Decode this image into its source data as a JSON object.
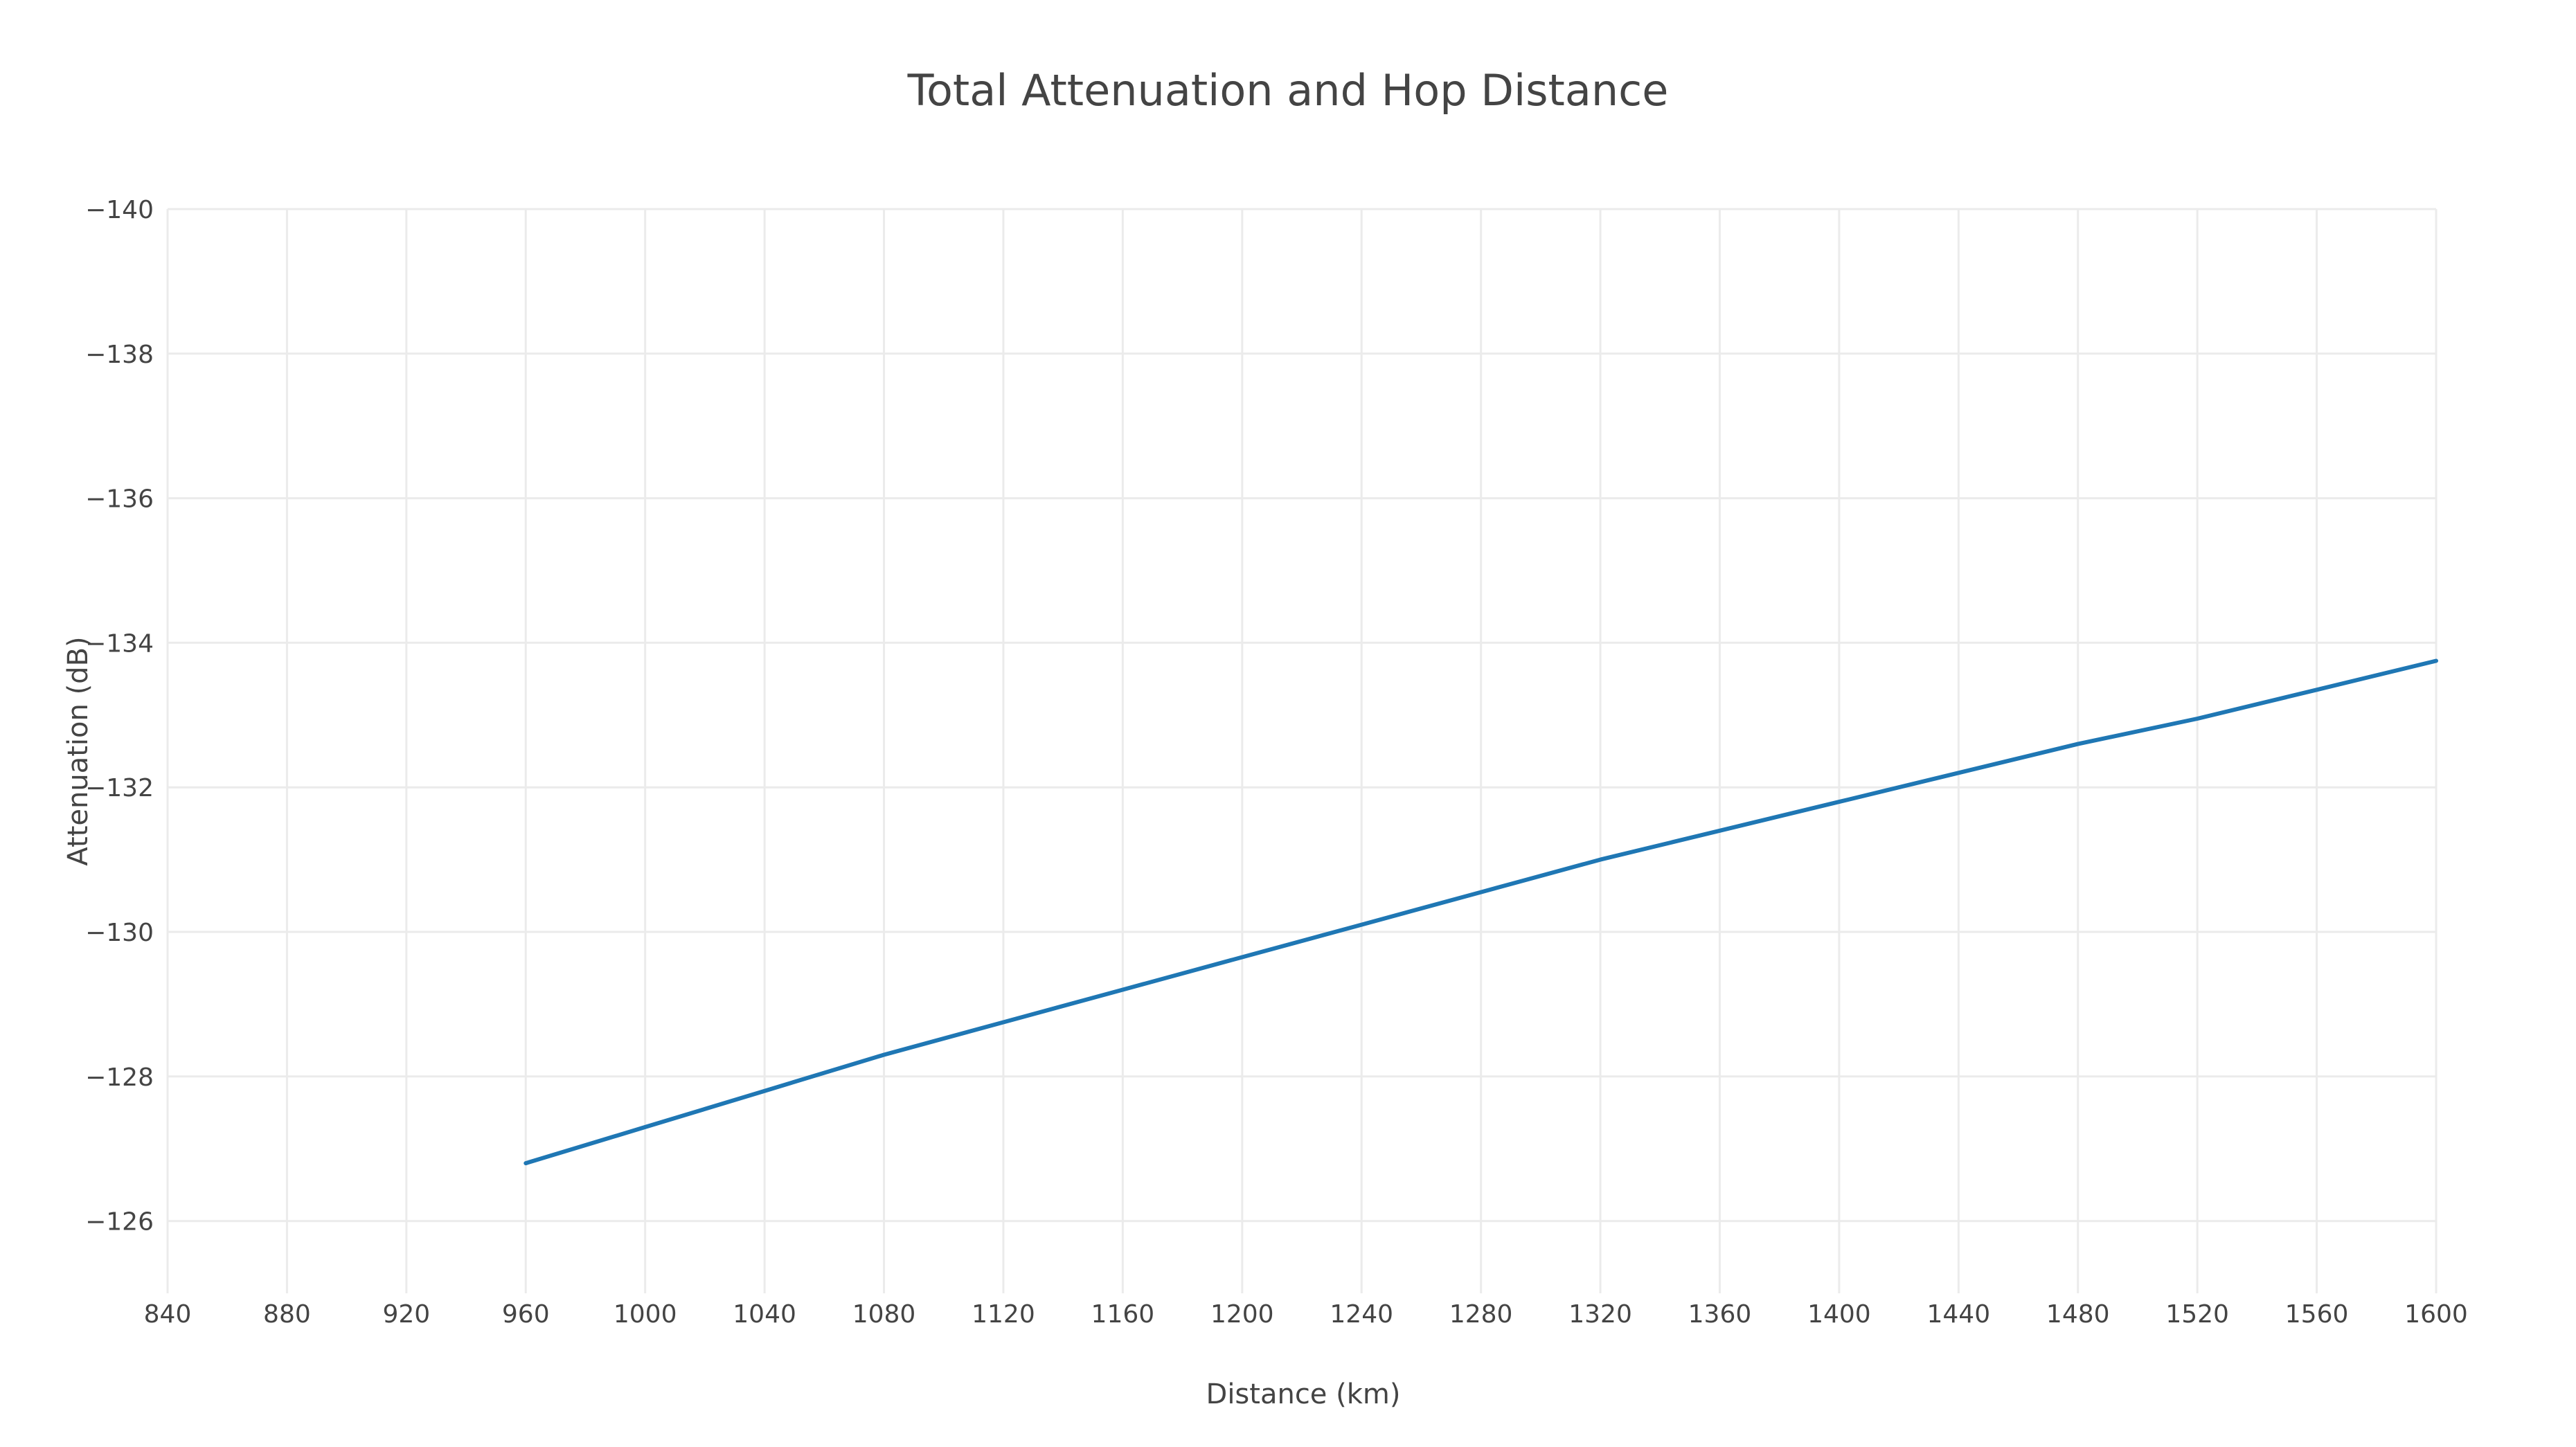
{
  "chart_data": {
    "type": "line",
    "title": "Total Attenuation and Hop Distance",
    "xlabel": "Distance (km)",
    "ylabel": "Attenuation (dB)",
    "xlim": [
      840,
      1600
    ],
    "ylim": [
      -125,
      -140
    ],
    "x_ticks": [
      840,
      880,
      920,
      960,
      1000,
      1040,
      1080,
      1120,
      1160,
      1200,
      1240,
      1280,
      1320,
      1360,
      1400,
      1440,
      1480,
      1520,
      1560,
      1600
    ],
    "y_ticks": [
      -140,
      -138,
      -136,
      -134,
      -132,
      -130,
      -128,
      -126
    ],
    "y_tick_labels": [
      "−140",
      "−138",
      "−136",
      "−134",
      "−132",
      "−130",
      "−128",
      "−126"
    ],
    "grid": true,
    "y_axis_reversed": true,
    "series": [
      {
        "color": "#1f77b4",
        "x": [
          960,
          1000,
          1040,
          1080,
          1120,
          1160,
          1200,
          1240,
          1280,
          1320,
          1360,
          1400,
          1440,
          1480,
          1520,
          1560,
          1600
        ],
        "y": [
          -126.8,
          -127.3,
          -127.8,
          -128.3,
          -128.75,
          -129.2,
          -129.65,
          -130.1,
          -130.55,
          -131.0,
          -131.4,
          -131.8,
          -132.2,
          -132.6,
          -132.95,
          -133.35,
          -133.75
        ]
      }
    ]
  }
}
